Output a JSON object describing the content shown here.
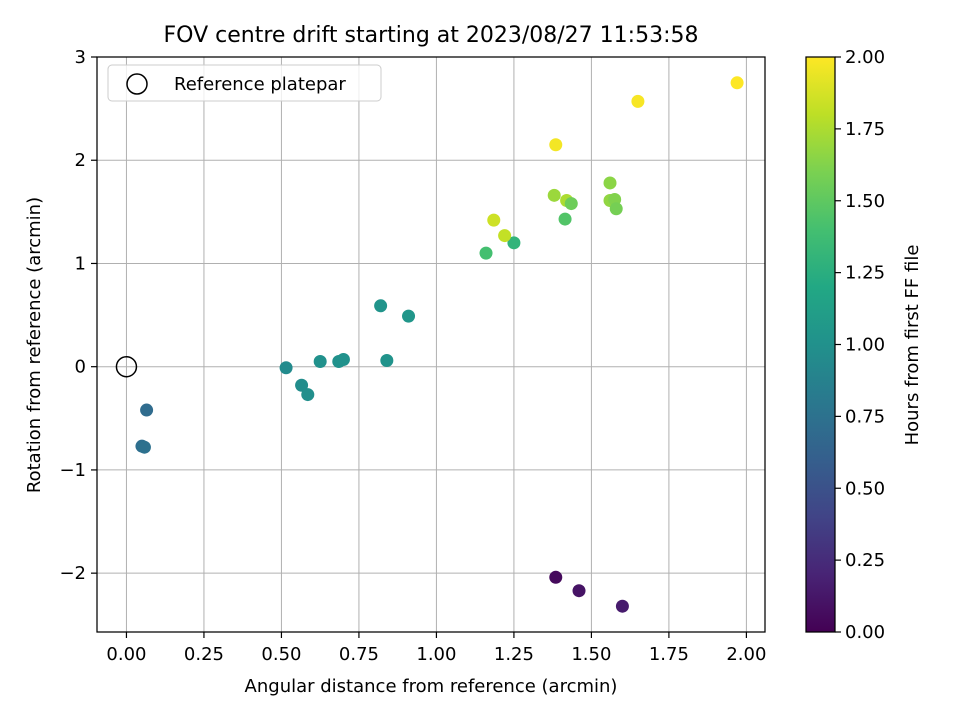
{
  "chart_data": {
    "type": "scatter",
    "title": "FOV centre drift starting at 2023/08/27 11:53:58",
    "xlabel": "Angular distance from reference (arcmin)",
    "ylabel": "Rotation from reference (arcmin)",
    "colorbar_label": "Hours from first FF file",
    "xlim": [
      -0.095,
      2.06
    ],
    "ylim": [
      -2.57,
      3.0
    ],
    "x_ticks": [
      0.0,
      0.25,
      0.5,
      0.75,
      1.0,
      1.25,
      1.5,
      1.75,
      2.0
    ],
    "x_tick_labels": [
      "0.00",
      "0.25",
      "0.50",
      "0.75",
      "1.00",
      "1.25",
      "1.50",
      "1.75",
      "2.00"
    ],
    "y_ticks": [
      -2,
      -1,
      0,
      1,
      2,
      3
    ],
    "y_tick_labels": [
      "−2",
      "−1",
      "0",
      "1",
      "2",
      "3"
    ],
    "colorbar_range": [
      0.0,
      2.0
    ],
    "colorbar_ticks": [
      0.0,
      0.25,
      0.5,
      0.75,
      1.0,
      1.25,
      1.5,
      1.75,
      2.0
    ],
    "colorbar_tick_labels": [
      "0.00",
      "0.25",
      "0.50",
      "0.75",
      "1.00",
      "1.25",
      "1.50",
      "1.75",
      "2.00"
    ],
    "colormap": "viridis",
    "grid": true,
    "legend": {
      "placement": "top-left",
      "entries": [
        {
          "label": "Reference platepar",
          "marker": "hollow-circle",
          "x": 0.0,
          "y": 0.0
        }
      ]
    },
    "points": [
      {
        "x": 1.385,
        "y": -2.04,
        "c": 0.05
      },
      {
        "x": 1.46,
        "y": -2.17,
        "c": 0.1
      },
      {
        "x": 1.6,
        "y": -2.32,
        "c": 0.15
      },
      {
        "x": 0.065,
        "y": -0.42,
        "c": 0.7
      },
      {
        "x": 0.05,
        "y": -0.77,
        "c": 0.72
      },
      {
        "x": 0.058,
        "y": -0.78,
        "c": 0.74
      },
      {
        "x": 0.515,
        "y": -0.01,
        "c": 0.95
      },
      {
        "x": 0.565,
        "y": -0.18,
        "c": 0.97
      },
      {
        "x": 0.585,
        "y": -0.27,
        "c": 0.98
      },
      {
        "x": 0.625,
        "y": 0.05,
        "c": 1.0
      },
      {
        "x": 0.685,
        "y": 0.05,
        "c": 1.0
      },
      {
        "x": 0.7,
        "y": 0.07,
        "c": 1.01
      },
      {
        "x": 0.84,
        "y": 0.06,
        "c": 1.02
      },
      {
        "x": 0.82,
        "y": 0.59,
        "c": 1.03
      },
      {
        "x": 0.91,
        "y": 0.49,
        "c": 1.04
      },
      {
        "x": 1.16,
        "y": 1.1,
        "c": 1.4
      },
      {
        "x": 1.25,
        "y": 1.2,
        "c": 1.3
      },
      {
        "x": 1.185,
        "y": 1.42,
        "c": 1.85
      },
      {
        "x": 1.22,
        "y": 1.27,
        "c": 1.82
      },
      {
        "x": 1.38,
        "y": 1.66,
        "c": 1.7
      },
      {
        "x": 1.415,
        "y": 1.43,
        "c": 1.45
      },
      {
        "x": 1.42,
        "y": 1.61,
        "c": 1.75
      },
      {
        "x": 1.435,
        "y": 1.58,
        "c": 1.55
      },
      {
        "x": 1.56,
        "y": 1.78,
        "c": 1.65
      },
      {
        "x": 1.56,
        "y": 1.61,
        "c": 1.67
      },
      {
        "x": 1.575,
        "y": 1.62,
        "c": 1.62
      },
      {
        "x": 1.58,
        "y": 1.53,
        "c": 1.58
      },
      {
        "x": 1.385,
        "y": 2.15,
        "c": 1.97
      },
      {
        "x": 1.65,
        "y": 2.57,
        "c": 1.98
      },
      {
        "x": 1.97,
        "y": 2.75,
        "c": 2.0
      }
    ]
  }
}
